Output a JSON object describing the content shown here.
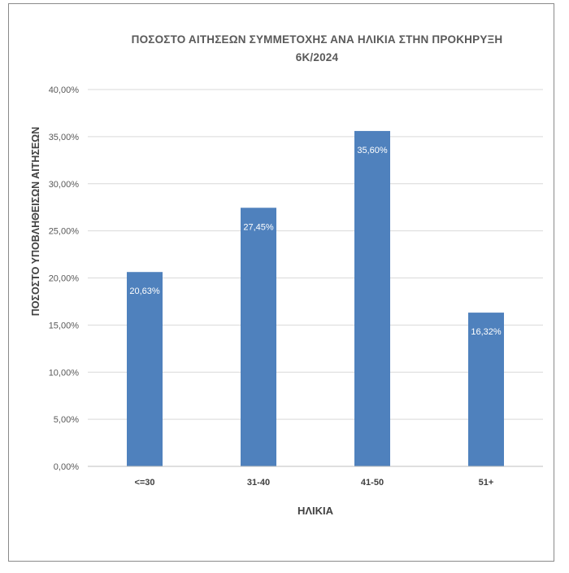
{
  "chart_data": {
    "type": "bar",
    "title": "ΠΟΣΟΣΤΟ ΑΙΤΗΣΕΩΝ ΣΥΜΜΕΤΟΧΗΣ ΑΝΑ ΗΛΙΚΙΑ ΣΤΗΝ ΠΡΟΚΗΡΥΞΗ",
    "subtitle": "6Κ/2024",
    "xlabel": "ΗΛΙΚΙΑ",
    "ylabel": "ΠΟΣΟΣΤΟ ΥΠΟΒΛΗΘΕΙΣΩΝ ΑΙΤΗΣΕΩΝ",
    "categories": [
      "<=30",
      "31-40",
      "41-50",
      "51+"
    ],
    "values": [
      20.63,
      27.45,
      35.6,
      16.32
    ],
    "data_labels": [
      "20,63%",
      "27,45%",
      "35,60%",
      "16,32%"
    ],
    "ylim": [
      0,
      40
    ],
    "yticks": [
      0,
      5,
      10,
      15,
      20,
      25,
      30,
      35,
      40
    ],
    "ytick_labels": [
      "0,00%",
      "5,00%",
      "10,00%",
      "15,00%",
      "20,00%",
      "25,00%",
      "30,00%",
      "35,00%",
      "40,00%"
    ],
    "grid": true,
    "legend": "none",
    "bar_color": "#4f81bd",
    "grid_color": "#d9d9d9"
  }
}
